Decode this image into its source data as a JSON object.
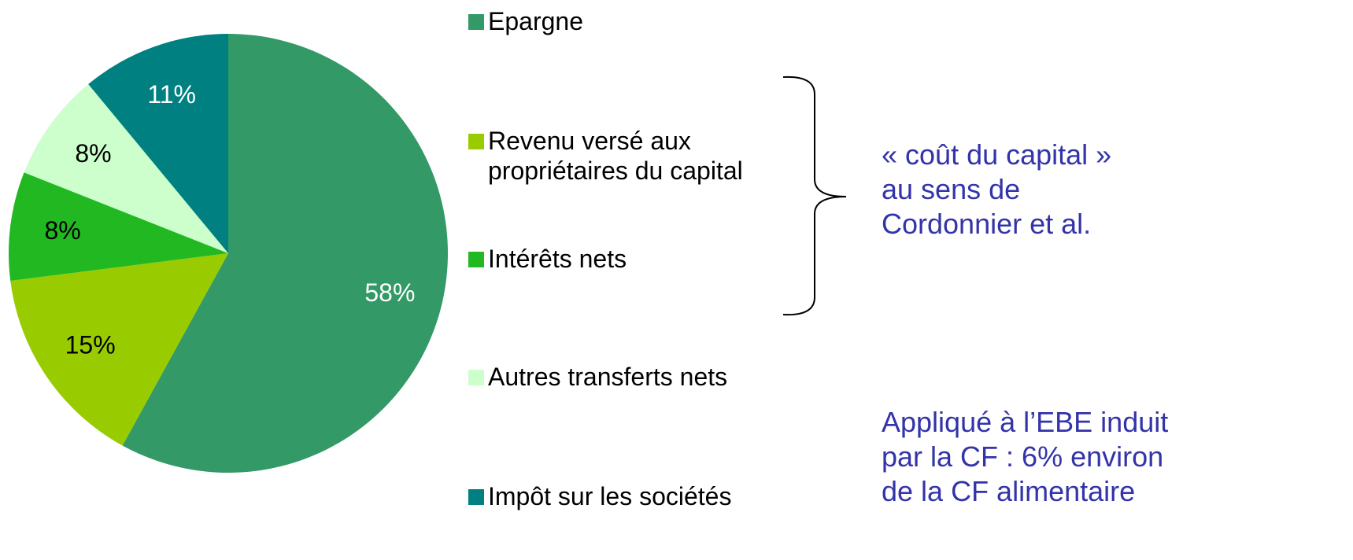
{
  "chart_data": {
    "type": "pie",
    "categories": [
      "Epargne",
      "Revenu versé aux\npropriétaires du capital",
      "Intérêts nets",
      "Autres transferts nets",
      "Impôt sur les sociétés"
    ],
    "values": [
      58,
      15,
      8,
      8,
      11
    ],
    "value_labels": [
      "58%",
      "15%",
      "8%",
      "8%",
      "11%"
    ],
    "colors": [
      "#339966",
      "#99cc00",
      "#22b822",
      "#ccffcc",
      "#008080"
    ],
    "label_colors": [
      "#ffffff",
      "#000000",
      "#000000",
      "#000000",
      "#ffffff"
    ],
    "annotations": [
      "« coût du capital »\nau sens de\nCordonnier et al.",
      "Appliqué à l’EBE induit\npar la CF : 6% environ\nde la CF alimentaire"
    ]
  }
}
